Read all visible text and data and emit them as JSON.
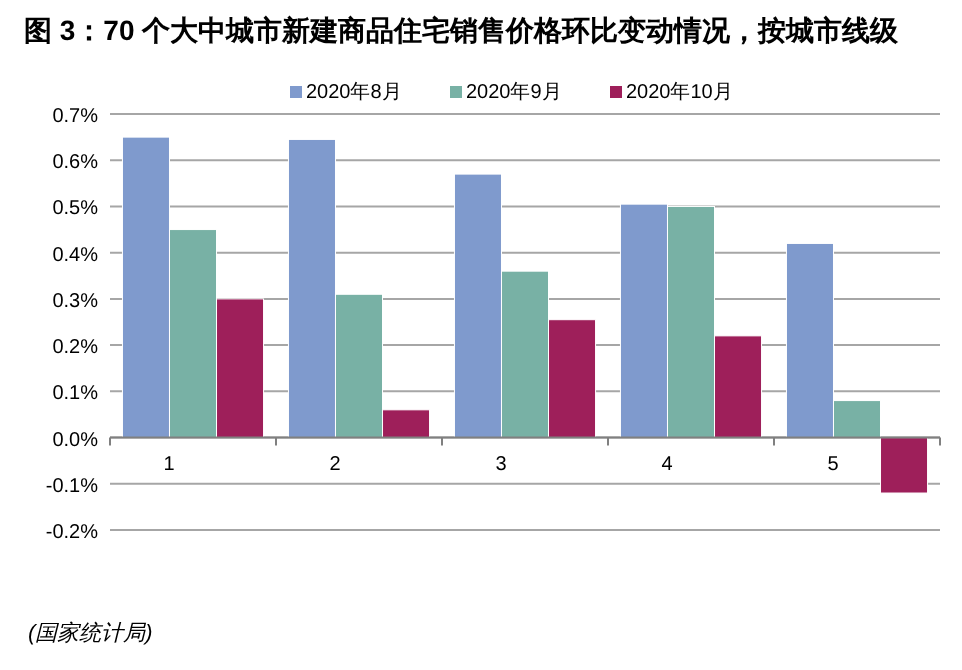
{
  "chart_data": {
    "type": "bar",
    "title": "图 3：70 个大中城市新建商品住宅销售价格环比变动情况，按城市线级",
    "categories": [
      "1",
      "2",
      "3",
      "4",
      "5"
    ],
    "series": [
      {
        "name": "2020年8月",
        "color": "#7f9acd",
        "values": [
          0.65,
          0.645,
          0.57,
          0.505,
          0.42
        ]
      },
      {
        "name": "2020年9月",
        "color": "#78b1a5",
        "values": [
          0.45,
          0.31,
          0.36,
          0.5,
          0.08
        ]
      },
      {
        "name": "2020年10月",
        "color": "#9e1f5a",
        "values": [
          0.3,
          0.06,
          0.255,
          0.22,
          -0.12
        ]
      }
    ],
    "ylim": [
      -0.2,
      0.7
    ],
    "yticks": [
      {
        "value": -0.2,
        "label": "-0.2%"
      },
      {
        "value": -0.1,
        "label": "-0.1%"
      },
      {
        "value": 0,
        "label": "0.0%"
      },
      {
        "value": 0.1,
        "label": "0.1%"
      },
      {
        "value": 0.2,
        "label": "0.2%"
      },
      {
        "value": 0.3,
        "label": "0.3%"
      },
      {
        "value": 0.4,
        "label": "0.4%"
      },
      {
        "value": 0.5,
        "label": "0.5%"
      },
      {
        "value": 0.6,
        "label": "0.6%"
      },
      {
        "value": 0.7,
        "label": "0.7%"
      }
    ],
    "grid": "y",
    "legend": "top",
    "annotations": [
      "(国家统计局)"
    ]
  }
}
